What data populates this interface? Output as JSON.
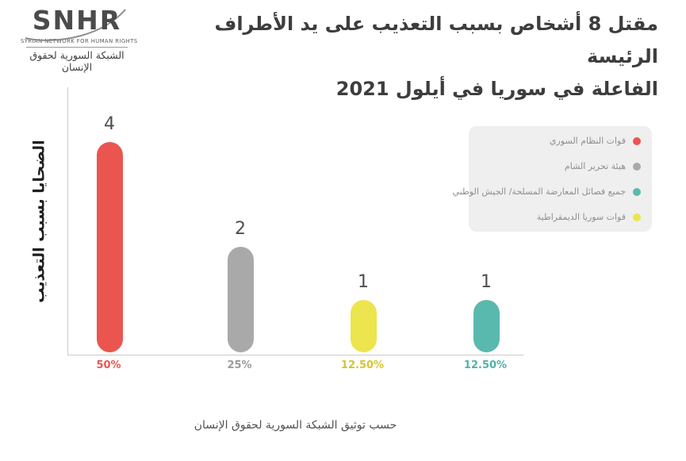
{
  "logo": {
    "acronym": "SNHR",
    "name_en": "SYRIAN NETWORK FOR HUMAN RIGHTS",
    "name_ar": "الشبكة السورية لحقوق الإنسان"
  },
  "header": {
    "title": "مقتل 8 أشخاص بسبب التعذيب على يد الأطراف الرئيسة\nالفاعلة في سوريا في أيلول 2021"
  },
  "chart_data": {
    "type": "bar",
    "title": "مقتل 8 أشخاص بسبب التعذيب على يد الأطراف الرئيسة الفاعلة في سوريا في أيلول 2021",
    "xlabel": "",
    "ylabel": "الضحايا بسبب التعذيب",
    "ymax": 4,
    "grid": false,
    "legend_position": "top-right",
    "categories": [
      "قوات النظام السوري",
      "هيئة تحرير الشام",
      "قوات سوريا الديمقراطية",
      "جميع فصائل المعارضة المسلحة/ الجيش الوطني"
    ],
    "values": [
      4,
      2,
      1,
      1
    ],
    "value_labels": [
      "4",
      "2",
      "1",
      "1"
    ],
    "percent_labels": [
      "50%",
      "25%",
      "12.50%",
      "12.50%"
    ],
    "bar_colors": [
      "#ea5550",
      "#a9a9a9",
      "#ece54d",
      "#5ab9ae"
    ],
    "percent_colors": [
      "#ea5550",
      "#9b9b9b",
      "#d5c431",
      "#4fb3a8"
    ],
    "legend": [
      {
        "label": "قوات النظام السوري",
        "color": "#ea5550"
      },
      {
        "label": "هيئة تحرير الشام",
        "color": "#a9a9a9"
      },
      {
        "label": "جميع فصائل المعارضة المسلحة/ الجيش الوطني",
        "color": "#5ab9ae"
      },
      {
        "label": "قوات سوريا الديمقراطية",
        "color": "#ece54d"
      }
    ]
  },
  "footer": {
    "source": "حسب توثيق الشبكة السورية لحقوق الإنسان"
  }
}
